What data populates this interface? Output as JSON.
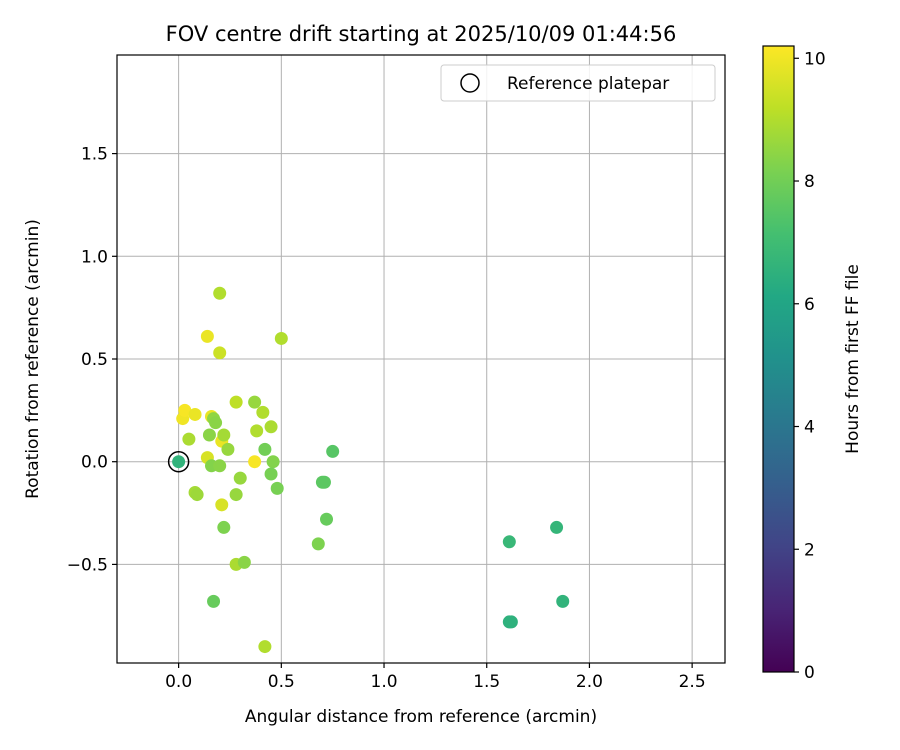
{
  "chart_data": {
    "type": "scatter",
    "title": "FOV centre drift starting at 2025/10/09 01:44:56",
    "xlabel": "Angular distance from reference (arcmin)",
    "ylabel": "Rotation from reference (arcmin)",
    "xlim": [
      -0.3,
      2.66
    ],
    "ylim": [
      -0.98,
      1.98
    ],
    "xticks": [
      0.0,
      0.5,
      1.0,
      1.5,
      2.0,
      2.5
    ],
    "xtick_labels": [
      "0.0",
      "0.5",
      "1.0",
      "1.5",
      "2.0",
      "2.5"
    ],
    "yticks": [
      -0.5,
      0.0,
      0.5,
      1.0,
      1.5
    ],
    "ytick_labels": [
      "−0.5",
      "0.0",
      "0.5",
      "1.0",
      "1.5"
    ],
    "grid": true,
    "legend": {
      "position": "top-right",
      "entries": [
        "Reference platepar"
      ]
    },
    "reference_marker": {
      "x": 0.0,
      "y": 0.0,
      "label": "Reference platepar"
    },
    "colorbar": {
      "label": "Hours from first FF file",
      "range": [
        0,
        10.2
      ],
      "ticks": [
        0,
        2,
        4,
        6,
        8,
        10
      ],
      "tick_labels": [
        "0",
        "2",
        "4",
        "6",
        "8",
        "10"
      ],
      "colormap": "viridis"
    },
    "points": [
      {
        "x": 0.0,
        "y": 0.0,
        "hours": 6.6
      },
      {
        "x": 0.02,
        "y": 0.21,
        "hours": 10.0
      },
      {
        "x": 0.03,
        "y": 0.25,
        "hours": 10.1
      },
      {
        "x": 0.08,
        "y": 0.23,
        "hours": 9.9
      },
      {
        "x": 0.05,
        "y": 0.11,
        "hours": 8.9
      },
      {
        "x": 0.08,
        "y": -0.15,
        "hours": 8.8
      },
      {
        "x": 0.09,
        "y": -0.16,
        "hours": 8.7
      },
      {
        "x": 0.14,
        "y": 0.61,
        "hours": 9.9
      },
      {
        "x": 0.14,
        "y": 0.02,
        "hours": 9.6
      },
      {
        "x": 0.15,
        "y": 0.13,
        "hours": 8.4
      },
      {
        "x": 0.16,
        "y": -0.02,
        "hours": 8.3
      },
      {
        "x": 0.16,
        "y": 0.22,
        "hours": 9.9
      },
      {
        "x": 0.17,
        "y": 0.21,
        "hours": 8.5
      },
      {
        "x": 0.18,
        "y": 0.19,
        "hours": 8.4
      },
      {
        "x": 0.17,
        "y": -0.68,
        "hours": 7.8
      },
      {
        "x": 0.2,
        "y": 0.82,
        "hours": 9.0
      },
      {
        "x": 0.2,
        "y": 0.53,
        "hours": 9.4
      },
      {
        "x": 0.2,
        "y": -0.02,
        "hours": 8.4
      },
      {
        "x": 0.21,
        "y": 0.1,
        "hours": 9.9
      },
      {
        "x": 0.21,
        "y": -0.21,
        "hours": 9.6
      },
      {
        "x": 0.22,
        "y": 0.13,
        "hours": 8.8
      },
      {
        "x": 0.22,
        "y": -0.32,
        "hours": 8.2
      },
      {
        "x": 0.24,
        "y": 0.06,
        "hours": 8.6
      },
      {
        "x": 0.28,
        "y": 0.29,
        "hours": 9.2
      },
      {
        "x": 0.28,
        "y": -0.16,
        "hours": 8.6
      },
      {
        "x": 0.28,
        "y": -0.5,
        "hours": 8.9
      },
      {
        "x": 0.3,
        "y": -0.08,
        "hours": 8.6
      },
      {
        "x": 0.32,
        "y": -0.49,
        "hours": 8.4
      },
      {
        "x": 0.37,
        "y": 0.29,
        "hours": 8.6
      },
      {
        "x": 0.38,
        "y": 0.15,
        "hours": 9.0
      },
      {
        "x": 0.37,
        "y": 0.0,
        "hours": 10.1
      },
      {
        "x": 0.41,
        "y": 0.24,
        "hours": 9.0
      },
      {
        "x": 0.42,
        "y": 0.06,
        "hours": 8.0
      },
      {
        "x": 0.42,
        "y": -0.9,
        "hours": 9.0
      },
      {
        "x": 0.45,
        "y": 0.17,
        "hours": 8.9
      },
      {
        "x": 0.46,
        "y": 0.0,
        "hours": 8.3
      },
      {
        "x": 0.45,
        "y": -0.06,
        "hours": 8.1
      },
      {
        "x": 0.48,
        "y": -0.13,
        "hours": 8.1
      },
      {
        "x": 0.5,
        "y": 0.6,
        "hours": 9.0
      },
      {
        "x": 0.68,
        "y": -0.4,
        "hours": 8.2
      },
      {
        "x": 0.7,
        "y": -0.1,
        "hours": 7.6
      },
      {
        "x": 0.71,
        "y": -0.1,
        "hours": 7.6
      },
      {
        "x": 0.72,
        "y": -0.28,
        "hours": 7.8
      },
      {
        "x": 0.75,
        "y": 0.05,
        "hours": 7.5
      },
      {
        "x": 1.61,
        "y": -0.39,
        "hours": 6.8
      },
      {
        "x": 1.61,
        "y": -0.78,
        "hours": 6.5
      },
      {
        "x": 1.62,
        "y": -0.78,
        "hours": 6.5
      },
      {
        "x": 1.84,
        "y": -0.32,
        "hours": 6.7
      },
      {
        "x": 1.87,
        "y": -0.68,
        "hours": 6.6
      }
    ]
  }
}
